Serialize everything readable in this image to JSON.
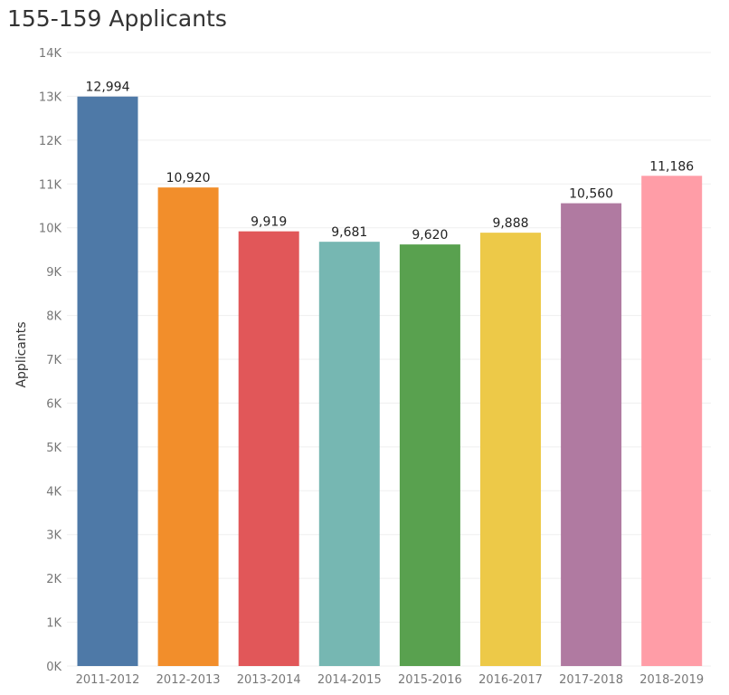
{
  "chart_data": {
    "type": "bar",
    "title": "155-159 Applicants",
    "xlabel": "",
    "ylabel": "Applicants",
    "categories": [
      "2011-2012",
      "2012-2013",
      "2013-2014",
      "2014-2015",
      "2015-2016",
      "2016-2017",
      "2017-2018",
      "2018-2019"
    ],
    "values": [
      12994,
      10920,
      9919,
      9681,
      9620,
      9888,
      10560,
      11186
    ],
    "data_labels": [
      "12,994",
      "10,920",
      "9,919",
      "9,681",
      "9,620",
      "9,888",
      "10,560",
      "11,186"
    ],
    "colors": [
      "#4e79a7",
      "#f28e2b",
      "#e15759",
      "#76b7b2",
      "#59a14f",
      "#edc948",
      "#b07aa1",
      "#ff9da7"
    ],
    "ylim": [
      0,
      14000
    ],
    "yticks": [
      0,
      1000,
      2000,
      3000,
      4000,
      5000,
      6000,
      7000,
      8000,
      9000,
      10000,
      11000,
      12000,
      13000,
      14000
    ],
    "ytick_labels": [
      "0K",
      "1K",
      "2K",
      "3K",
      "4K",
      "5K",
      "6K",
      "7K",
      "8K",
      "9K",
      "10K",
      "11K",
      "12K",
      "13K",
      "14K"
    ],
    "grid": true,
    "legend": "none"
  }
}
